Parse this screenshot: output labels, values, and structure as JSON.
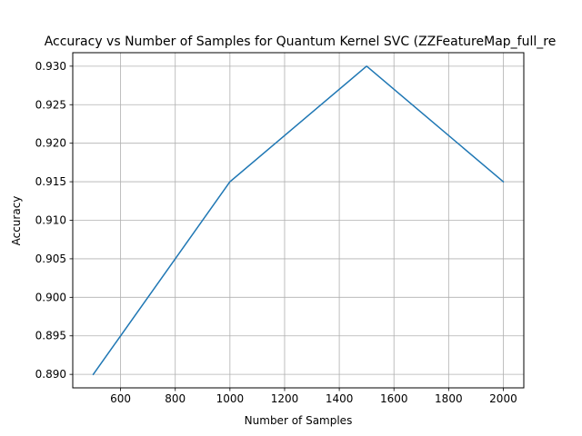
{
  "chart_data": {
    "type": "line",
    "title": "Accuracy vs Number of Samples for Quantum Kernel SVC (ZZFeatureMap_full_re",
    "xlabel": "Number of Samples",
    "ylabel": "Accuracy",
    "x": [
      500,
      1000,
      1500,
      2000
    ],
    "series": [
      {
        "values": [
          0.89,
          0.915,
          0.93,
          0.915
        ],
        "color": "#1f77b4"
      }
    ],
    "xlim": [
      425,
      2075
    ],
    "ylim": [
      0.88825,
      0.93175
    ],
    "xticks": [
      600,
      800,
      1000,
      1200,
      1400,
      1600,
      1800,
      2000
    ],
    "xtick_labels": [
      "600",
      "800",
      "1000",
      "1200",
      "1400",
      "1600",
      "1800",
      "2000"
    ],
    "yticks": [
      0.89,
      0.895,
      0.9,
      0.905,
      0.91,
      0.915,
      0.92,
      0.925,
      0.93
    ],
    "ytick_labels": [
      "0.890",
      "0.895",
      "0.900",
      "0.905",
      "0.910",
      "0.915",
      "0.920",
      "0.925",
      "0.930"
    ],
    "grid": true,
    "grid_color": "#b0b0b0",
    "axis_color": "#000000"
  }
}
